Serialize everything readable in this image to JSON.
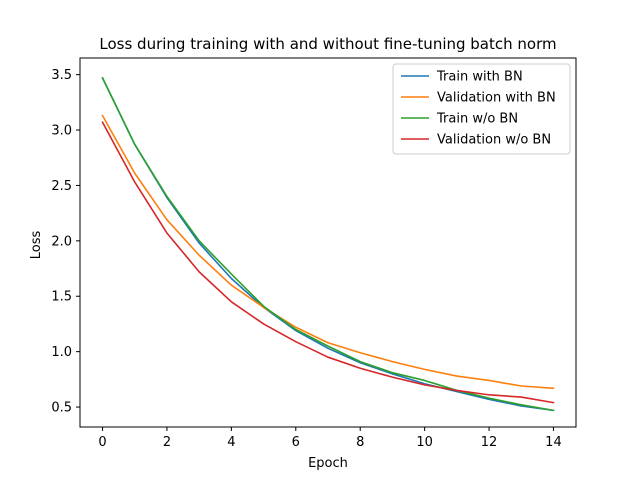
{
  "chart_data": {
    "type": "line",
    "title": "Loss during training with and without fine-tuning batch norm",
    "xlabel": "Epoch",
    "ylabel": "Loss",
    "xlim": [
      -0.7,
      14.7
    ],
    "ylim": [
      0.32,
      3.65
    ],
    "xticks": [
      0,
      2,
      4,
      6,
      8,
      10,
      12,
      14
    ],
    "yticks": [
      0.5,
      1.0,
      1.5,
      2.0,
      2.5,
      3.0,
      3.5
    ],
    "xtick_labels": [
      "0",
      "2",
      "4",
      "6",
      "8",
      "10",
      "12",
      "14"
    ],
    "ytick_labels": [
      "0.5",
      "1.0",
      "1.5",
      "2.0",
      "2.5",
      "3.0",
      "3.5"
    ],
    "grid": false,
    "legend_position": "top-right",
    "x": [
      0,
      1,
      2,
      3,
      4,
      5,
      6,
      7,
      8,
      9,
      10,
      11,
      12,
      13,
      14
    ],
    "series": [
      {
        "name": "Train with BN",
        "color": "#1f77b4",
        "values": [
          3.47,
          2.87,
          2.39,
          1.98,
          1.66,
          1.4,
          1.19,
          1.03,
          0.9,
          0.8,
          0.71,
          0.64,
          0.57,
          0.51,
          0.47
        ]
      },
      {
        "name": "Validation with BN",
        "color": "#ff7f0e",
        "values": [
          3.13,
          2.61,
          2.19,
          1.87,
          1.6,
          1.4,
          1.22,
          1.08,
          0.99,
          0.91,
          0.84,
          0.78,
          0.74,
          0.69,
          0.67
        ]
      },
      {
        "name": "Train w/o BN",
        "color": "#2ca02c",
        "values": [
          3.47,
          2.87,
          2.4,
          2.0,
          1.7,
          1.41,
          1.2,
          1.05,
          0.91,
          0.81,
          0.74,
          0.65,
          0.58,
          0.52,
          0.47
        ]
      },
      {
        "name": "Validation w/o BN",
        "color": "#d62728",
        "values": [
          3.07,
          2.53,
          2.07,
          1.72,
          1.45,
          1.25,
          1.09,
          0.95,
          0.85,
          0.77,
          0.7,
          0.65,
          0.61,
          0.59,
          0.54
        ]
      }
    ]
  }
}
